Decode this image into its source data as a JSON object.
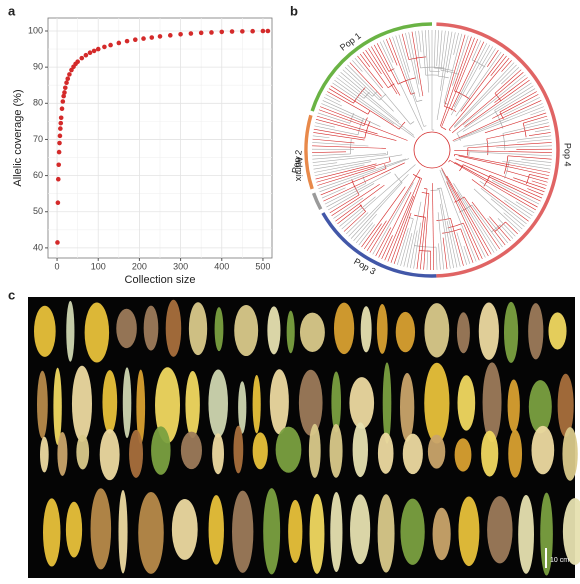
{
  "panel_labels": [
    "a",
    "b",
    "c"
  ],
  "chart_data": {
    "type": "scatter",
    "x_label": "Collection size",
    "y_label": "Allelic coverage (%)",
    "x": [
      1,
      2,
      3,
      4,
      5,
      6,
      7,
      8,
      9,
      10,
      12,
      14,
      16,
      18,
      20,
      23,
      26,
      30,
      35,
      40,
      45,
      50,
      60,
      70,
      80,
      90,
      100,
      115,
      130,
      150,
      170,
      190,
      210,
      230,
      250,
      275,
      300,
      325,
      350,
      375,
      400,
      425,
      450,
      475,
      500,
      512
    ],
    "values": [
      41.5,
      52.5,
      59,
      63,
      66.5,
      69,
      71,
      73,
      74.5,
      76,
      78.5,
      80.5,
      82,
      83,
      84.3,
      85.7,
      86.8,
      88,
      89.2,
      90.1,
      90.9,
      91.5,
      92.5,
      93.3,
      94,
      94.5,
      95,
      95.6,
      96.1,
      96.7,
      97.2,
      97.6,
      97.9,
      98.2,
      98.5,
      98.8,
      99.1,
      99.3,
      99.5,
      99.6,
      99.75,
      99.85,
      99.9,
      99.95,
      100,
      100
    ],
    "color": "#d42a2a",
    "xlim": [
      -22,
      522
    ],
    "ylim": [
      37.2,
      103.6
    ],
    "xticks": [
      0,
      100,
      200,
      300,
      400,
      500
    ],
    "yticks": [
      40,
      50,
      60,
      70,
      80,
      90,
      100
    ],
    "grid": true
  },
  "tree": {
    "clades": [
      {
        "label": "Pop 1",
        "color": "#6ab344"
      },
      {
        "label": "Pop 2",
        "color": "#e8894a"
      },
      {
        "label": "Admix",
        "color": "#9a9a9a"
      },
      {
        "label": "Pop 3",
        "color": "#4257a8"
      },
      {
        "label": "Pop 4",
        "color": "#e06464"
      }
    ]
  },
  "photo": {
    "scale_bar": "10 cm"
  }
}
